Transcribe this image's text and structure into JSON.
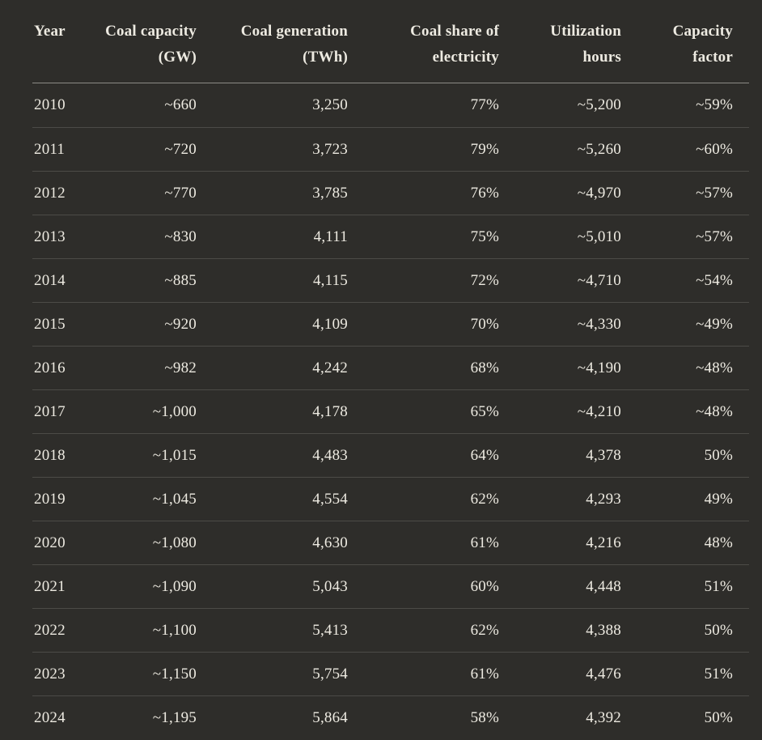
{
  "colors": {
    "background": "#2e2d2a",
    "text": "#edeae1",
    "header_divider": "#8c8b86",
    "row_divider": "#4c4b47"
  },
  "chart_data": {
    "type": "table",
    "column_ids": [
      "year",
      "coal-capacity-gw",
      "coal-generation-twh",
      "coal-share-of-electricity",
      "utilization-hours",
      "capacity-factor"
    ],
    "columns": [
      "Year",
      "Coal capacity (GW)",
      "Coal generation (TWh)",
      "Coal share of electricity",
      "Utilization hours",
      "Capacity factor"
    ],
    "header_lines": [
      [
        "Year"
      ],
      [
        "Coal capacity",
        "(GW)"
      ],
      [
        "Coal generation",
        "(TWh)"
      ],
      [
        "Coal share of",
        "electricity"
      ],
      [
        "Utilization",
        "hours"
      ],
      [
        "Capacity",
        "factor"
      ]
    ],
    "rows": [
      [
        "2010",
        "~660",
        "3,250",
        "77%",
        "~5,200",
        "~59%"
      ],
      [
        "2011",
        "~720",
        "3,723",
        "79%",
        "~5,260",
        "~60%"
      ],
      [
        "2012",
        "~770",
        "3,785",
        "76%",
        "~4,970",
        "~57%"
      ],
      [
        "2013",
        "~830",
        "4,111",
        "75%",
        "~5,010",
        "~57%"
      ],
      [
        "2014",
        "~885",
        "4,115",
        "72%",
        "~4,710",
        "~54%"
      ],
      [
        "2015",
        "~920",
        "4,109",
        "70%",
        "~4,330",
        "~49%"
      ],
      [
        "2016",
        "~982",
        "4,242",
        "68%",
        "~4,190",
        "~48%"
      ],
      [
        "2017",
        "~1,000",
        "4,178",
        "65%",
        "~4,210",
        "~48%"
      ],
      [
        "2018",
        "~1,015",
        "4,483",
        "64%",
        "4,378",
        "50%"
      ],
      [
        "2019",
        "~1,045",
        "4,554",
        "62%",
        "4,293",
        "49%"
      ],
      [
        "2020",
        "~1,080",
        "4,630",
        "61%",
        "4,216",
        "48%"
      ],
      [
        "2021",
        "~1,090",
        "5,043",
        "60%",
        "4,448",
        "51%"
      ],
      [
        "2022",
        "~1,100",
        "5,413",
        "62%",
        "4,388",
        "50%"
      ],
      [
        "2023",
        "~1,150",
        "5,754",
        "61%",
        "4,476",
        "51%"
      ],
      [
        "2024",
        "~1,195",
        "5,864",
        "58%",
        "4,392",
        "50%"
      ]
    ]
  }
}
